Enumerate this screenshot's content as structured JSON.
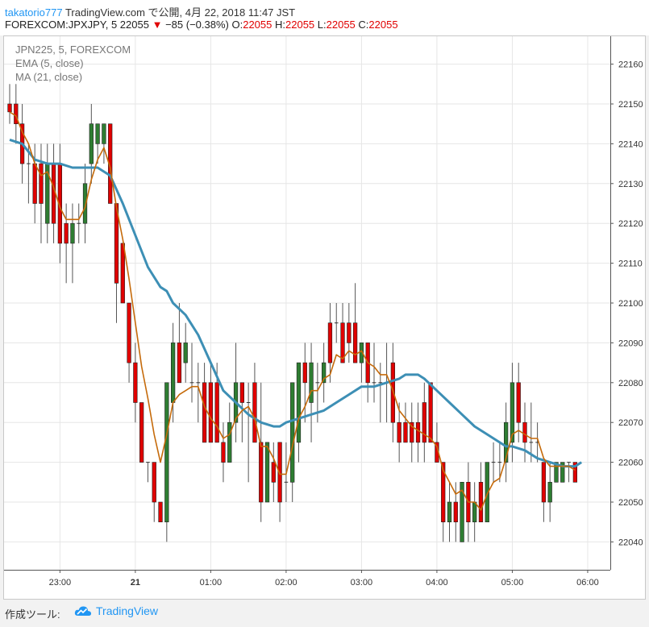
{
  "header": {
    "user": "takatorio777",
    "published": "TradingView.com で公開, 4月 22, 2018 11:47 JST",
    "symbol_line": "FOREXCOM:JPXJPY, 5 22055",
    "change": "−85 (−0.38%)",
    "o_label": "O:",
    "o_value": "22055",
    "h_label": "H:",
    "h_value": "22055",
    "l_label": "L:",
    "l_value": "22055",
    "c_label": "C:",
    "c_value": "22055"
  },
  "legend": {
    "series": "JPN225, 5, FOREXCOM",
    "ema": "EMA (5, close)",
    "ma": "MA (21, close)"
  },
  "footer": {
    "label": "作成ツール:",
    "brand": "TradingView"
  },
  "colors": {
    "up": "#2e7d32",
    "down": "#e00000",
    "ema": "#c56a0a",
    "ma": "#3d8fb5",
    "grid": "#e6e6e6",
    "brand": "#2196f3"
  },
  "chart_data": {
    "type": "candlestick",
    "interval": "5",
    "x_ticks": [
      {
        "t": 0,
        "label": "23:00"
      },
      {
        "t": 12,
        "label": "21"
      },
      {
        "t": 24,
        "label": "01:00"
      },
      {
        "t": 36,
        "label": "02:00"
      },
      {
        "t": 48,
        "label": "03:00"
      },
      {
        "t": 60,
        "label": "04:00"
      },
      {
        "t": 72,
        "label": "05:00"
      },
      {
        "t": 84,
        "label": "06:00"
      }
    ],
    "y_ticks": [
      22040,
      22050,
      22060,
      22070,
      22080,
      22090,
      22100,
      22110,
      22120,
      22130,
      22140,
      22150,
      22160
    ],
    "ylim": [
      22033,
      22167
    ],
    "x_range": [
      -8.9,
      87.6
    ],
    "grid": true,
    "candles": [
      {
        "t": -8.0,
        "o": 22150,
        "h": 22155,
        "l": 22145,
        "c": 22148
      },
      {
        "t": -7.0,
        "o": 22150,
        "h": 22155,
        "l": 22140,
        "c": 22145
      },
      {
        "t": -6.0,
        "o": 22145,
        "h": 22150,
        "l": 22130,
        "c": 22135
      },
      {
        "t": -5.0,
        "o": 22135,
        "h": 22140,
        "l": 22125,
        "c": 22135
      },
      {
        "t": -4.0,
        "o": 22135,
        "h": 22140,
        "l": 22120,
        "c": 22125
      },
      {
        "t": -3.0,
        "o": 22135,
        "h": 22140,
        "l": 22115,
        "c": 22125
      },
      {
        "t": -2.0,
        "o": 22120,
        "h": 22140,
        "l": 22115,
        "c": 22135
      },
      {
        "t": -1.0,
        "o": 22135,
        "h": 22140,
        "l": 22115,
        "c": 22120
      },
      {
        "t": 0.0,
        "o": 22135,
        "h": 22140,
        "l": 22110,
        "c": 22115
      },
      {
        "t": 1.0,
        "o": 22120,
        "h": 22125,
        "l": 22105,
        "c": 22115
      },
      {
        "t": 2.0,
        "o": 22115,
        "h": 22125,
        "l": 22105,
        "c": 22120
      },
      {
        "t": 3.0,
        "o": 22120,
        "h": 22125,
        "l": 22115,
        "c": 22120
      },
      {
        "t": 4.0,
        "o": 22120,
        "h": 22135,
        "l": 22115,
        "c": 22130
      },
      {
        "t": 5.0,
        "o": 22135,
        "h": 22150,
        "l": 22130,
        "c": 22145
      },
      {
        "t": 6.0,
        "o": 22140,
        "h": 22145,
        "l": 22135,
        "c": 22145
      },
      {
        "t": 7.0,
        "o": 22140,
        "h": 22145,
        "l": 22135,
        "c": 22145
      },
      {
        "t": 8.0,
        "o": 22145,
        "h": 22145,
        "l": 22125,
        "c": 22125
      },
      {
        "t": 9.0,
        "o": 22125,
        "h": 22125,
        "l": 22095,
        "c": 22105
      },
      {
        "t": 10.0,
        "o": 22115,
        "h": 22115,
        "l": 22100,
        "c": 22100
      },
      {
        "t": 11.0,
        "o": 22100,
        "h": 22100,
        "l": 22080,
        "c": 22085
      },
      {
        "t": 12.0,
        "o": 22085,
        "h": 22090,
        "l": 22070,
        "c": 22075
      },
      {
        "t": 13.0,
        "o": 22075,
        "h": 22075,
        "l": 22060,
        "c": 22060
      },
      {
        "t": 14.0,
        "o": 22060,
        "h": 22060,
        "l": 22055,
        "c": 22060
      },
      {
        "t": 15.0,
        "o": 22060,
        "h": 22060,
        "l": 22045,
        "c": 22050
      },
      {
        "t": 16.0,
        "o": 22050,
        "h": 22050,
        "l": 22045,
        "c": 22045
      },
      {
        "t": 17.0,
        "o": 22045,
        "h": 22080,
        "l": 22040,
        "c": 22080
      },
      {
        "t": 18.0,
        "o": 22075,
        "h": 22095,
        "l": 22070,
        "c": 22090
      },
      {
        "t": 19.0,
        "o": 22090,
        "h": 22100,
        "l": 22080,
        "c": 22080
      },
      {
        "t": 20.0,
        "o": 22085,
        "h": 22095,
        "l": 22080,
        "c": 22090
      },
      {
        "t": 21.0,
        "o": 22080,
        "h": 22090,
        "l": 22075,
        "c": 22080
      },
      {
        "t": 22.0,
        "o": 22080,
        "h": 22085,
        "l": 22070,
        "c": 22080
      },
      {
        "t": 23.0,
        "o": 22080,
        "h": 22085,
        "l": 22065,
        "c": 22065
      },
      {
        "t": 24.0,
        "o": 22080,
        "h": 22085,
        "l": 22065,
        "c": 22065
      },
      {
        "t": 25.0,
        "o": 22080,
        "h": 22085,
        "l": 22065,
        "c": 22065
      },
      {
        "t": 26.0,
        "o": 22065,
        "h": 22070,
        "l": 22055,
        "c": 22060
      },
      {
        "t": 27.0,
        "o": 22060,
        "h": 22075,
        "l": 22060,
        "c": 22070
      },
      {
        "t": 28.0,
        "o": 22070,
        "h": 22090,
        "l": 22065,
        "c": 22080
      },
      {
        "t": 29.0,
        "o": 22080,
        "h": 22080,
        "l": 22065,
        "c": 22075
      },
      {
        "t": 30.0,
        "o": 22075,
        "h": 22080,
        "l": 22055,
        "c": 22075
      },
      {
        "t": 31.0,
        "o": 22080,
        "h": 22085,
        "l": 22065,
        "c": 22065
      },
      {
        "t": 32.0,
        "o": 22065,
        "h": 22080,
        "l": 22045,
        "c": 22050
      },
      {
        "t": 33.0,
        "o": 22050,
        "h": 22065,
        "l": 22050,
        "c": 22065
      },
      {
        "t": 34.0,
        "o": 22060,
        "h": 22065,
        "l": 22050,
        "c": 22055
      },
      {
        "t": 35.0,
        "o": 22065,
        "h": 22065,
        "l": 22045,
        "c": 22050
      },
      {
        "t": 36.0,
        "o": 22055,
        "h": 22065,
        "l": 22050,
        "c": 22055
      },
      {
        "t": 37.0,
        "o": 22055,
        "h": 22080,
        "l": 22050,
        "c": 22080
      },
      {
        "t": 38.0,
        "o": 22065,
        "h": 22085,
        "l": 22060,
        "c": 22085
      },
      {
        "t": 39.0,
        "o": 22085,
        "h": 22090,
        "l": 22070,
        "c": 22080
      },
      {
        "t": 40.0,
        "o": 22075,
        "h": 22090,
        "l": 22065,
        "c": 22085
      },
      {
        "t": 41.0,
        "o": 22080,
        "h": 22085,
        "l": 22070,
        "c": 22080
      },
      {
        "t": 42.0,
        "o": 22080,
        "h": 22090,
        "l": 22075,
        "c": 22085
      },
      {
        "t": 43.0,
        "o": 22095,
        "h": 22100,
        "l": 22080,
        "c": 22085
      },
      {
        "t": 44.0,
        "o": 22095,
        "h": 22100,
        "l": 22090,
        "c": 22095
      },
      {
        "t": 45.0,
        "o": 22095,
        "h": 22100,
        "l": 22085,
        "c": 22085
      },
      {
        "t": 46.0,
        "o": 22095,
        "h": 22100,
        "l": 22085,
        "c": 22090
      },
      {
        "t": 47.0,
        "o": 22095,
        "h": 22105,
        "l": 22085,
        "c": 22085
      },
      {
        "t": 48.0,
        "o": 22085,
        "h": 22090,
        "l": 22080,
        "c": 22090
      },
      {
        "t": 49.0,
        "o": 22090,
        "h": 22090,
        "l": 22075,
        "c": 22080
      },
      {
        "t": 50.0,
        "o": 22080,
        "h": 22090,
        "l": 22075,
        "c": 22080
      },
      {
        "t": 51.0,
        "o": 22080,
        "h": 22085,
        "l": 22070,
        "c": 22080
      },
      {
        "t": 52.0,
        "o": 22080,
        "h": 22090,
        "l": 22070,
        "c": 22080
      },
      {
        "t": 53.0,
        "o": 22085,
        "h": 22090,
        "l": 22065,
        "c": 22070
      },
      {
        "t": 54.0,
        "o": 22070,
        "h": 22075,
        "l": 22060,
        "c": 22065
      },
      {
        "t": 55.0,
        "o": 22070,
        "h": 22075,
        "l": 22065,
        "c": 22065
      },
      {
        "t": 56.0,
        "o": 22070,
        "h": 22075,
        "l": 22060,
        "c": 22065
      },
      {
        "t": 57.0,
        "o": 22070,
        "h": 22075,
        "l": 22060,
        "c": 22065
      },
      {
        "t": 58.0,
        "o": 22075,
        "h": 22080,
        "l": 22060,
        "c": 22065
      },
      {
        "t": 59.0,
        "o": 22080,
        "h": 22080,
        "l": 22065,
        "c": 22065
      },
      {
        "t": 60.0,
        "o": 22065,
        "h": 22070,
        "l": 22060,
        "c": 22060
      },
      {
        "t": 61.0,
        "o": 22060,
        "h": 22060,
        "l": 22040,
        "c": 22045
      },
      {
        "t": 62.0,
        "o": 22045,
        "h": 22055,
        "l": 22040,
        "c": 22050
      },
      {
        "t": 63.0,
        "o": 22050,
        "h": 22055,
        "l": 22040,
        "c": 22045
      },
      {
        "t": 64.0,
        "o": 22040,
        "h": 22055,
        "l": 22040,
        "c": 22055
      },
      {
        "t": 65.0,
        "o": 22055,
        "h": 22060,
        "l": 22040,
        "c": 22045
      },
      {
        "t": 66.0,
        "o": 22045,
        "h": 22055,
        "l": 22040,
        "c": 22050
      },
      {
        "t": 67.0,
        "o": 22055,
        "h": 22060,
        "l": 22045,
        "c": 22045
      },
      {
        "t": 68.0,
        "o": 22045,
        "h": 22060,
        "l": 22045,
        "c": 22060
      },
      {
        "t": 69.0,
        "o": 22060,
        "h": 22065,
        "l": 22055,
        "c": 22060
      },
      {
        "t": 70.0,
        "o": 22060,
        "h": 22065,
        "l": 22055,
        "c": 22060
      },
      {
        "t": 71.0,
        "o": 22060,
        "h": 22075,
        "l": 22055,
        "c": 22070
      },
      {
        "t": 72.0,
        "o": 22065,
        "h": 22085,
        "l": 22060,
        "c": 22080
      },
      {
        "t": 73.0,
        "o": 22080,
        "h": 22085,
        "l": 22065,
        "c": 22070
      },
      {
        "t": 74.0,
        "o": 22070,
        "h": 22075,
        "l": 22060,
        "c": 22065
      },
      {
        "t": 75.0,
        "o": 22065,
        "h": 22075,
        "l": 22060,
        "c": 22065
      },
      {
        "t": 76.0,
        "o": 22065,
        "h": 22070,
        "l": 22060,
        "c": 22065
      },
      {
        "t": 77.0,
        "o": 22060,
        "h": 22060,
        "l": 22045,
        "c": 22050
      },
      {
        "t": 78.0,
        "o": 22050,
        "h": 22060,
        "l": 22045,
        "c": 22055
      },
      {
        "t": 79.0,
        "o": 22055,
        "h": 22060,
        "l": 22055,
        "c": 22060
      },
      {
        "t": 80.0,
        "o": 22055,
        "h": 22060,
        "l": 22055,
        "c": 22060
      },
      {
        "t": 81.0,
        "o": 22060,
        "h": 22060,
        "l": 22055,
        "c": 22060
      },
      {
        "t": 82.0,
        "o": 22060,
        "h": 22060,
        "l": 22055,
        "c": 22055
      }
    ],
    "ema": {
      "name": "EMA (5, close)",
      "points": [
        [
          -8.0,
          22148
        ],
        [
          -7.0,
          22147
        ],
        [
          -6.0,
          22143
        ],
        [
          -5.0,
          22140
        ],
        [
          -4.0,
          22135
        ],
        [
          -3.0,
          22132
        ],
        [
          -2.0,
          22133
        ],
        [
          -1.0,
          22129
        ],
        [
          0.0,
          22124
        ],
        [
          1.0,
          22121
        ],
        [
          2.0,
          22121
        ],
        [
          3.0,
          22121
        ],
        [
          4.0,
          22124
        ],
        [
          5.0,
          22131
        ],
        [
          6.0,
          22136
        ],
        [
          7.0,
          22139
        ],
        [
          8.0,
          22134
        ],
        [
          9.0,
          22124
        ],
        [
          10.0,
          22116
        ],
        [
          11.0,
          22106
        ],
        [
          12.0,
          22095
        ],
        [
          13.0,
          22084
        ],
        [
          14.0,
          22076
        ],
        [
          15.0,
          22067
        ],
        [
          16.0,
          22060
        ],
        [
          17.0,
          22067
        ],
        [
          18.0,
          22075
        ],
        [
          19.0,
          22077
        ],
        [
          20.0,
          22078
        ],
        [
          21.0,
          22079
        ],
        [
          22.0,
          22079
        ],
        [
          23.0,
          22074
        ],
        [
          24.0,
          22071
        ],
        [
          25.0,
          22069
        ],
        [
          26.0,
          22066
        ],
        [
          27.0,
          22067
        ],
        [
          28.0,
          22071
        ],
        [
          29.0,
          22073
        ],
        [
          30.0,
          22074
        ],
        [
          31.0,
          22071
        ],
        [
          32.0,
          22064
        ],
        [
          33.0,
          22064
        ],
        [
          34.0,
          22061
        ],
        [
          35.0,
          22057
        ],
        [
          36.0,
          22057
        ],
        [
          37.0,
          22064
        ],
        [
          38.0,
          22071
        ],
        [
          39.0,
          22074
        ],
        [
          40.0,
          22078
        ],
        [
          41.0,
          22078
        ],
        [
          42.0,
          22081
        ],
        [
          43.0,
          22082
        ],
        [
          44.0,
          22087
        ],
        [
          45.0,
          22086
        ],
        [
          46.0,
          22088
        ],
        [
          47.0,
          22087
        ],
        [
          48.0,
          22088
        ],
        [
          49.0,
          22085
        ],
        [
          50.0,
          22084
        ],
        [
          51.0,
          22082
        ],
        [
          52.0,
          22082
        ],
        [
          53.0,
          22078
        ],
        [
          54.0,
          22073
        ],
        [
          55.0,
          22071
        ],
        [
          56.0,
          22069
        ],
        [
          57.0,
          22068
        ],
        [
          58.0,
          22067
        ],
        [
          59.0,
          22066
        ],
        [
          60.0,
          22064
        ],
        [
          61.0,
          22058
        ],
        [
          62.0,
          22055
        ],
        [
          63.0,
          22052
        ],
        [
          64.0,
          22053
        ],
        [
          65.0,
          22050
        ],
        [
          66.0,
          22050
        ],
        [
          67.0,
          22048
        ],
        [
          68.0,
          22052
        ],
        [
          69.0,
          22055
        ],
        [
          70.0,
          22056
        ],
        [
          71.0,
          22061
        ],
        [
          72.0,
          22067
        ],
        [
          73.0,
          22068
        ],
        [
          74.0,
          22067
        ],
        [
          75.0,
          22066
        ],
        [
          76.0,
          22066
        ],
        [
          77.0,
          22061
        ],
        [
          78.0,
          22059
        ],
        [
          79.0,
          22059
        ],
        [
          80.0,
          22059
        ],
        [
          81.0,
          22059
        ],
        [
          82.0,
          22058
        ]
      ]
    },
    "ma": {
      "name": "MA (21, close)",
      "points": [
        [
          -8.0,
          22141
        ],
        [
          -6.0,
          22140
        ],
        [
          -5.0,
          22138
        ],
        [
          -4.0,
          22136
        ],
        [
          -2.0,
          22135
        ],
        [
          0.0,
          22135
        ],
        [
          2.0,
          22134
        ],
        [
          4.0,
          22134
        ],
        [
          6.0,
          22134
        ],
        [
          8.0,
          22132
        ],
        [
          10.0,
          22125
        ],
        [
          12.0,
          22117
        ],
        [
          14.0,
          22109
        ],
        [
          16.0,
          22104
        ],
        [
          17.0,
          22103
        ],
        [
          18.0,
          22100
        ],
        [
          20.0,
          22097
        ],
        [
          22.0,
          22092
        ],
        [
          24.0,
          22085
        ],
        [
          26.0,
          22078
        ],
        [
          28.0,
          22075
        ],
        [
          30.0,
          22072
        ],
        [
          32.0,
          22070
        ],
        [
          34.0,
          22069
        ],
        [
          35.0,
          22069
        ],
        [
          36.0,
          22070
        ],
        [
          38.0,
          22071
        ],
        [
          40.0,
          22072
        ],
        [
          42.0,
          22073
        ],
        [
          44.0,
          22075
        ],
        [
          46.0,
          22077
        ],
        [
          48.0,
          22079
        ],
        [
          49.0,
          22079
        ],
        [
          50.0,
          22079
        ],
        [
          52.0,
          22080
        ],
        [
          54.0,
          22081
        ],
        [
          55.0,
          22082
        ],
        [
          56.0,
          22082
        ],
        [
          57.0,
          22082
        ],
        [
          58.0,
          22081
        ],
        [
          60.0,
          22078
        ],
        [
          62.0,
          22075
        ],
        [
          64.0,
          22072
        ],
        [
          66.0,
          22069
        ],
        [
          68.0,
          22067
        ],
        [
          70.0,
          22065
        ],
        [
          71.0,
          22064
        ],
        [
          72.0,
          22064
        ],
        [
          74.0,
          22063
        ],
        [
          76.0,
          22061
        ],
        [
          78.0,
          22060
        ],
        [
          80.0,
          22059
        ],
        [
          82.0,
          22059
        ],
        [
          83.0,
          22060
        ]
      ]
    }
  }
}
